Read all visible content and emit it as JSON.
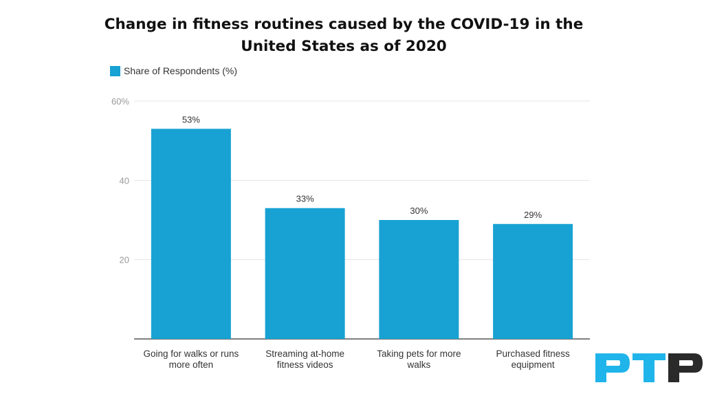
{
  "title_line1": "Change in fitness routines caused by the COVID-19  in the",
  "title_line2": "United States as of 2020",
  "legend": {
    "label": "Share of Respondents (%)"
  },
  "colors": {
    "bar": "#18a2d3",
    "grid": "#e6e6e6",
    "axis": "#333333",
    "tick_text": "#999999",
    "label_text": "#333333"
  },
  "logo": {
    "text": "PTP",
    "colors": [
      "#1fb4ea",
      "#2a2a2a"
    ]
  },
  "chart_data": {
    "type": "bar",
    "title": "Change in fitness routines caused by the COVID-19  in the United States as of 2020",
    "categories": [
      "Going for walks or runs more often",
      "Streaming at-home fitness videos",
      "Taking pets for more walks",
      "Purchased fitness equipment"
    ],
    "category_lines": [
      [
        "Going for walks or runs",
        "more often"
      ],
      [
        "Streaming at-home",
        "fitness videos"
      ],
      [
        "Taking pets for more",
        "walks"
      ],
      [
        "Purchased fitness",
        "equipment"
      ]
    ],
    "series": [
      {
        "name": "Share of Respondents (%)",
        "values": [
          53,
          33,
          30,
          29
        ]
      }
    ],
    "value_labels": [
      "53%",
      "33%",
      "30%",
      "29%"
    ],
    "ylim": [
      0,
      60
    ],
    "yticks": [
      {
        "value": 20,
        "label": "20"
      },
      {
        "value": 40,
        "label": "40"
      },
      {
        "value": 60,
        "label": "60%"
      }
    ],
    "xlabel": "",
    "ylabel": "",
    "grid": true
  }
}
